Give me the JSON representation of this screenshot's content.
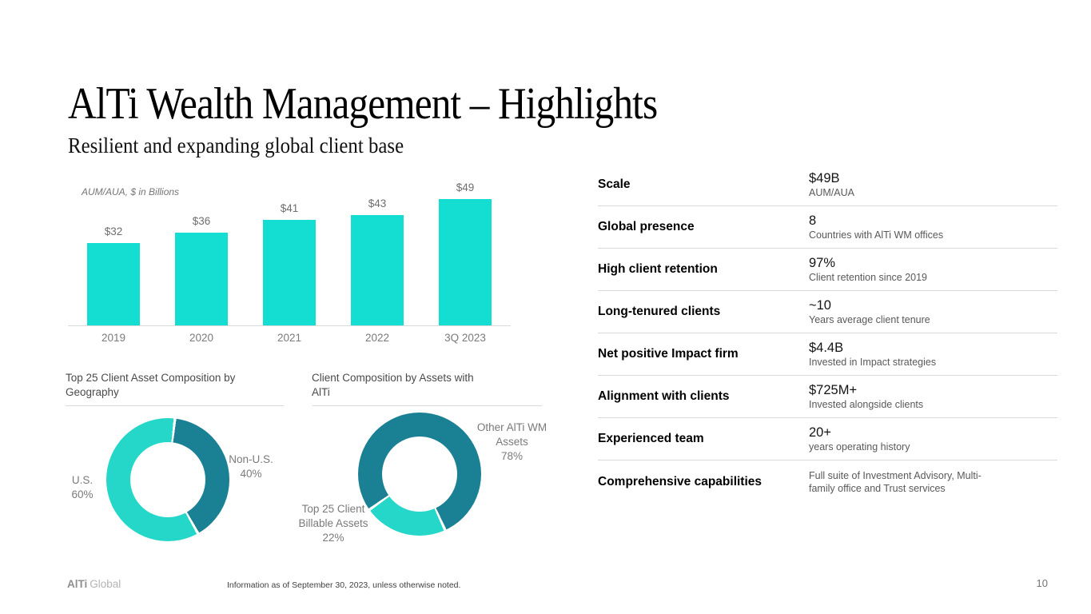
{
  "slide": {
    "title": "AlTi Wealth Management – Highlights",
    "subtitle": "Resilient and expanding global client base",
    "page_number": "10",
    "footer": {
      "logo_bold": "AlTi",
      "logo_light": "Global",
      "note": "Information as of September 30, 2023, unless otherwise noted."
    }
  },
  "colors": {
    "bar_teal": "#14DED2",
    "donut_bright_teal": "#24D7C9",
    "donut_dark_teal": "#1A8094",
    "axis_line": "#D9D9D9",
    "gray_label": "#7A7A7A"
  },
  "chart_data": [
    {
      "type": "bar",
      "title": "AUM/AUA, $ in Billions",
      "categories": [
        "2019",
        "2020",
        "2021",
        "2022",
        "3Q 2023"
      ],
      "values": [
        32,
        36,
        41,
        43,
        49
      ],
      "data_labels": [
        "$32",
        "$36",
        "$41",
        "$43",
        "$49"
      ],
      "xlabel": "",
      "ylabel": "",
      "ylim": [
        0,
        52
      ],
      "grid": false,
      "bar_color": "#14DED2"
    },
    {
      "type": "pie",
      "title": "Top 25 Client Asset Composition by Geography",
      "start_angle": 8,
      "slices": [
        {
          "name": "Non-U.S.",
          "pct": 40,
          "pct_label": "40%",
          "color": "#1A8094"
        },
        {
          "name": "U.S.",
          "pct": 60,
          "pct_label": "60%",
          "color": "#24D7C9"
        }
      ]
    },
    {
      "type": "pie",
      "title": "Client Composition by Assets with AlTi",
      "start_angle": 236,
      "slices": [
        {
          "name": "Other AlTi WM Assets",
          "pct": 78,
          "pct_label": "78%",
          "color": "#1A8094"
        },
        {
          "name": "Top 25 Client Billable Assets",
          "pct": 22,
          "pct_label": "22%",
          "color": "#24D7C9"
        }
      ]
    }
  ],
  "table": {
    "rows": [
      {
        "label": "Scale",
        "value": "$49B",
        "sub": "AUM/AUA"
      },
      {
        "label": "Global presence",
        "value": "8",
        "sub": "Countries with AlTi WM offices"
      },
      {
        "label": "High client retention",
        "value": "97%",
        "sub": "Client retention since 2019"
      },
      {
        "label": "Long-tenured clients",
        "value": "~10",
        "sub": "Years average client tenure"
      },
      {
        "label": "Net positive Impact firm",
        "value": "$4.4B",
        "sub": "Invested in Impact strategies"
      },
      {
        "label": "Alignment with clients",
        "value": "$725M+",
        "sub": "Invested alongside clients"
      },
      {
        "label": "Experienced team",
        "value": "20+",
        "sub": "years operating history"
      },
      {
        "label": "Comprehensive capabilities",
        "value": "",
        "sub": "Full suite of Investment Advisory, Multi-\nfamily office and Trust services"
      }
    ]
  }
}
